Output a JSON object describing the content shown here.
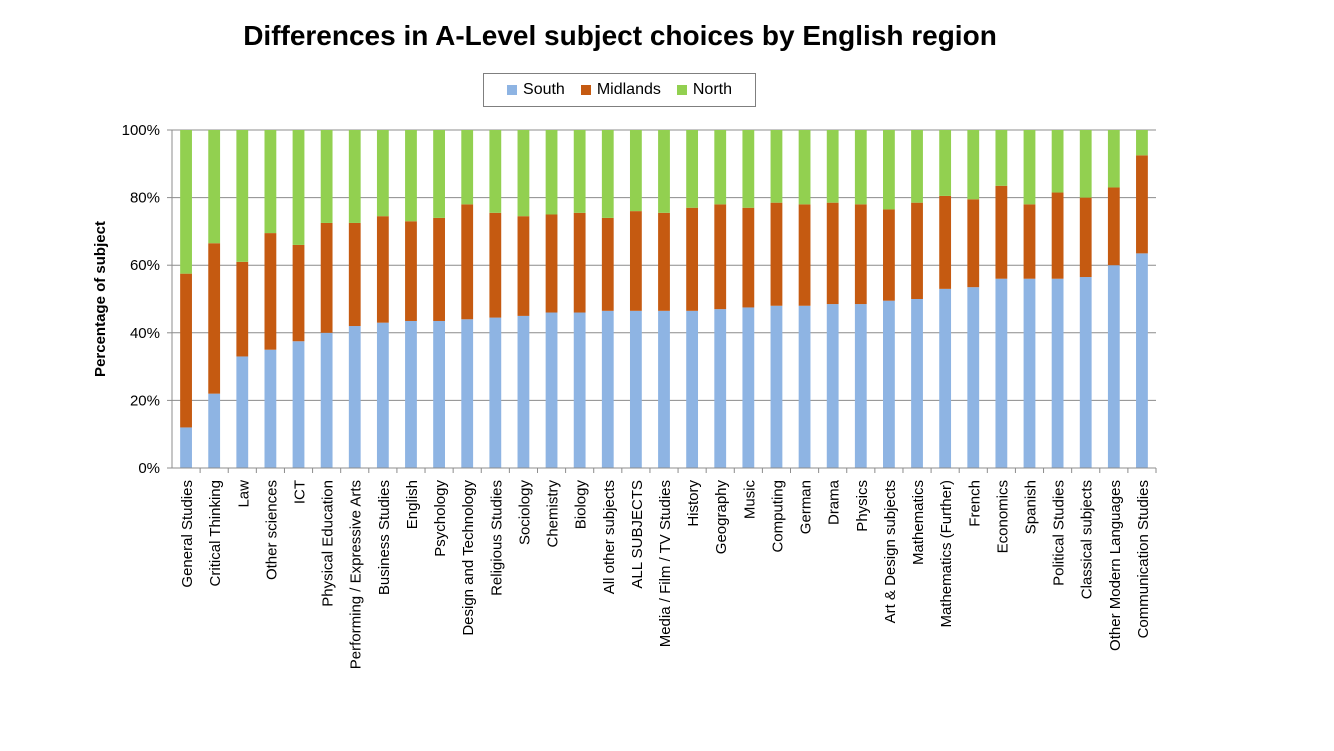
{
  "chart_data": {
    "type": "bar",
    "stacked": true,
    "title": "Differences in A-Level subject choices by English region",
    "ylabel": "Percentage of subject",
    "xlabel": "",
    "ylim": [
      0,
      100
    ],
    "yticks": [
      "0%",
      "20%",
      "40%",
      "60%",
      "80%",
      "100%"
    ],
    "grid": true,
    "legend_position": "top",
    "categories": [
      "General Studies",
      "Critical Thinking",
      "Law",
      "Other sciences",
      "ICT",
      "Physical Education",
      "Performing / Expressive Arts",
      "Business Studies",
      "English",
      "Psychology",
      "Design and Technology",
      "Religious Studies",
      "Sociology",
      "Chemistry",
      "Biology",
      "All other subjects",
      "ALL SUBJECTS",
      "Media / Film / TV Studies",
      "History",
      "Geography",
      "Music",
      "Computing",
      "German",
      "Drama",
      "Physics",
      "Art & Design subjects",
      "Mathematics",
      "Mathematics (Further)",
      "French",
      "Economics",
      "Spanish",
      "Political Studies",
      "Classical subjects",
      "Other Modern Languages",
      "Communication Studies"
    ],
    "series": [
      {
        "name": "South",
        "color": "#8eb4e3",
        "values": [
          12,
          22,
          33,
          35,
          37.5,
          40,
          42,
          43,
          43.5,
          43.5,
          44,
          44.5,
          45,
          46,
          46,
          46.5,
          46.5,
          46.5,
          46.5,
          47,
          47.5,
          48,
          48,
          48.5,
          48.5,
          49.5,
          50,
          53,
          53.5,
          56,
          56,
          56,
          56.5,
          60,
          63.5
        ]
      },
      {
        "name": "Midlands",
        "color": "#c55a11",
        "values": [
          45.5,
          44.5,
          28,
          34.5,
          28.5,
          32.5,
          30.5,
          31.5,
          29.5,
          30.5,
          34,
          31,
          29.5,
          29,
          29.5,
          27.5,
          29.5,
          29,
          30.5,
          31,
          29.5,
          30.5,
          30,
          30,
          29.5,
          27,
          28.5,
          27.5,
          26,
          27.5,
          22,
          25.5,
          23.5,
          23,
          29
        ]
      },
      {
        "name": "North",
        "color": "#92d050",
        "values": [
          42.5,
          33.5,
          39,
          30.5,
          34,
          27.5,
          27.5,
          25.5,
          27,
          26,
          22,
          24.5,
          25.5,
          25,
          24.5,
          26,
          24,
          24.5,
          23,
          22,
          23,
          21.5,
          22,
          21.5,
          22,
          23.5,
          21.5,
          19.5,
          20.5,
          16.5,
          22,
          18.5,
          20,
          17,
          7.5
        ]
      }
    ]
  }
}
